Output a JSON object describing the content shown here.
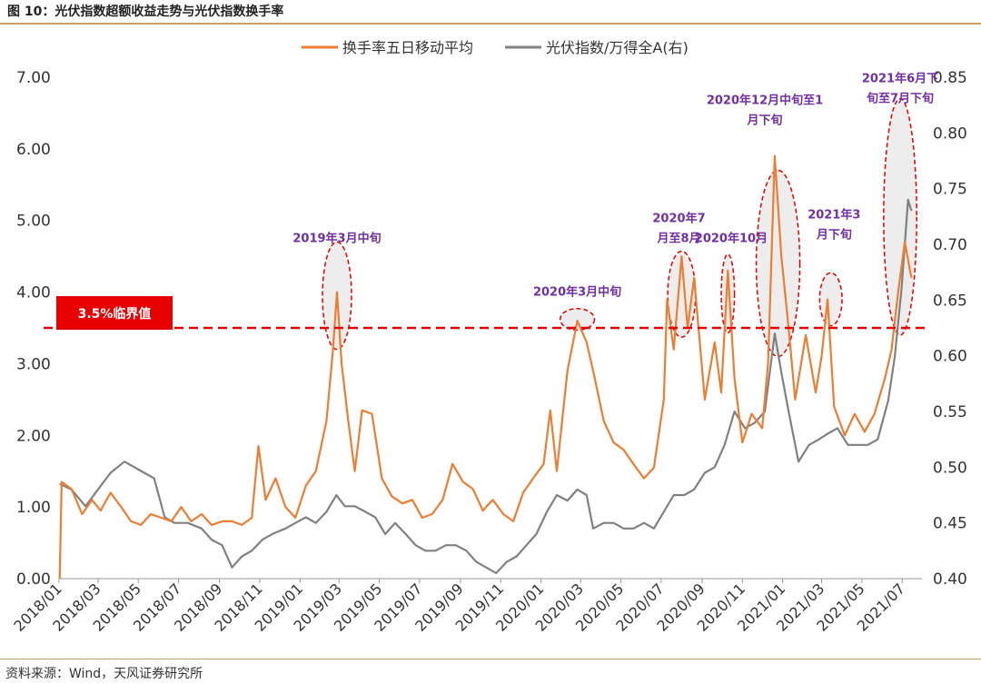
{
  "figure_title": "图 10：光伏指数超额收益走势与光伏指数换手率",
  "source_note": "资料来源：Wind，天风证券研究所",
  "colors": {
    "turnover": "#ED7D31",
    "index": "#808080",
    "threshold": "#E60000",
    "annotation_text": "#7030A0",
    "ellipse_stroke": "#E60000",
    "ellipse_fill": "#EDEDED",
    "rule": "#C8A46A"
  },
  "chart_data": {
    "type": "line",
    "legend_position": "top-center",
    "grid": false,
    "x_ticks": [
      "2018/01",
      "2018/03",
      "2018/05",
      "2018/07",
      "2018/09",
      "2018/11",
      "2019/01",
      "2019/03",
      "2019/05",
      "2019/07",
      "2019/09",
      "2019/11",
      "2020/01",
      "2020/03",
      "2020/05",
      "2020/07",
      "2020/09",
      "2020/11",
      "2021/01",
      "2021/03",
      "2021/05",
      "2021/07"
    ],
    "x_range": [
      "2018-01-01",
      "2021-07-31"
    ],
    "y_left": {
      "min": 0,
      "max": 7,
      "ticks": [
        "0.00",
        "1.00",
        "2.00",
        "3.00",
        "4.00",
        "5.00",
        "6.00",
        "7.00"
      ]
    },
    "y_right": {
      "min": 0.4,
      "max": 0.85,
      "ticks": [
        "0.40",
        "0.45",
        "0.50",
        "0.55",
        "0.60",
        "0.65",
        "0.70",
        "0.75",
        "0.80",
        "0.85"
      ]
    },
    "series": [
      {
        "name": "换手率五日移动平均",
        "axis": "left",
        "points": [
          [
            "2018-01-02",
            0.0
          ],
          [
            "2018-01-05",
            1.35
          ],
          [
            "2018-01-20",
            1.25
          ],
          [
            "2018-02-05",
            0.9
          ],
          [
            "2018-02-20",
            1.1
          ],
          [
            "2018-03-05",
            0.95
          ],
          [
            "2018-03-20",
            1.2
          ],
          [
            "2018-04-05",
            1.0
          ],
          [
            "2018-04-20",
            0.8
          ],
          [
            "2018-05-05",
            0.75
          ],
          [
            "2018-05-20",
            0.9
          ],
          [
            "2018-06-05",
            0.85
          ],
          [
            "2018-06-20",
            0.8
          ],
          [
            "2018-07-05",
            1.0
          ],
          [
            "2018-07-20",
            0.8
          ],
          [
            "2018-08-05",
            0.9
          ],
          [
            "2018-08-20",
            0.75
          ],
          [
            "2018-09-05",
            0.8
          ],
          [
            "2018-09-20",
            0.8
          ],
          [
            "2018-10-05",
            0.75
          ],
          [
            "2018-10-20",
            0.85
          ],
          [
            "2018-10-30",
            1.85
          ],
          [
            "2018-11-10",
            1.1
          ],
          [
            "2018-11-25",
            1.4
          ],
          [
            "2018-12-10",
            1.0
          ],
          [
            "2018-12-25",
            0.85
          ],
          [
            "2019-01-10",
            1.3
          ],
          [
            "2019-01-25",
            1.5
          ],
          [
            "2019-02-10",
            2.2
          ],
          [
            "2019-02-20",
            3.2
          ],
          [
            "2019-02-26",
            4.0
          ],
          [
            "2019-03-05",
            3.0
          ],
          [
            "2019-03-15",
            2.2
          ],
          [
            "2019-03-25",
            1.5
          ],
          [
            "2019-04-05",
            2.35
          ],
          [
            "2019-04-20",
            2.3
          ],
          [
            "2019-05-05",
            1.4
          ],
          [
            "2019-05-20",
            1.15
          ],
          [
            "2019-06-05",
            1.05
          ],
          [
            "2019-06-20",
            1.1
          ],
          [
            "2019-07-05",
            0.85
          ],
          [
            "2019-07-20",
            0.9
          ],
          [
            "2019-08-05",
            1.1
          ],
          [
            "2019-08-20",
            1.6
          ],
          [
            "2019-09-05",
            1.35
          ],
          [
            "2019-09-20",
            1.25
          ],
          [
            "2019-10-05",
            0.95
          ],
          [
            "2019-10-20",
            1.1
          ],
          [
            "2019-11-05",
            0.9
          ],
          [
            "2019-11-20",
            0.8
          ],
          [
            "2019-12-05",
            1.2
          ],
          [
            "2019-12-20",
            1.4
          ],
          [
            "2020-01-05",
            1.6
          ],
          [
            "2020-01-15",
            2.35
          ],
          [
            "2020-01-25",
            1.5
          ],
          [
            "2020-02-10",
            2.9
          ],
          [
            "2020-02-25",
            3.6
          ],
          [
            "2020-03-10",
            3.3
          ],
          [
            "2020-03-20",
            2.9
          ],
          [
            "2020-04-05",
            2.2
          ],
          [
            "2020-04-20",
            1.9
          ],
          [
            "2020-05-05",
            1.8
          ],
          [
            "2020-05-20",
            1.6
          ],
          [
            "2020-06-05",
            1.4
          ],
          [
            "2020-06-20",
            1.55
          ],
          [
            "2020-07-05",
            2.5
          ],
          [
            "2020-07-10",
            3.9
          ],
          [
            "2020-07-20",
            3.2
          ],
          [
            "2020-08-01",
            4.5
          ],
          [
            "2020-08-10",
            3.5
          ],
          [
            "2020-08-20",
            4.2
          ],
          [
            "2020-09-05",
            2.5
          ],
          [
            "2020-09-20",
            3.3
          ],
          [
            "2020-09-30",
            2.6
          ],
          [
            "2020-10-10",
            4.3
          ],
          [
            "2020-10-20",
            2.8
          ],
          [
            "2020-11-01",
            1.9
          ],
          [
            "2020-11-15",
            2.3
          ],
          [
            "2020-12-01",
            2.1
          ],
          [
            "2020-12-10",
            3.0
          ],
          [
            "2020-12-20",
            5.9
          ],
          [
            "2020-12-30",
            4.5
          ],
          [
            "2021-01-10",
            3.5
          ],
          [
            "2021-01-20",
            2.5
          ],
          [
            "2021-02-05",
            3.4
          ],
          [
            "2021-02-20",
            2.6
          ],
          [
            "2021-03-01",
            3.1
          ],
          [
            "2021-03-10",
            3.9
          ],
          [
            "2021-03-20",
            2.4
          ],
          [
            "2021-04-05",
            2.0
          ],
          [
            "2021-04-20",
            2.3
          ],
          [
            "2021-05-05",
            2.05
          ],
          [
            "2021-05-20",
            2.3
          ],
          [
            "2021-06-05",
            2.8
          ],
          [
            "2021-06-15",
            3.2
          ],
          [
            "2021-06-25",
            4.0
          ],
          [
            "2021-07-05",
            4.7
          ],
          [
            "2021-07-15",
            4.2
          ]
        ]
      },
      {
        "name": "光伏指数/万得全A(右)",
        "axis": "right",
        "points": [
          [
            "2018-01-02",
            0.485
          ],
          [
            "2018-01-20",
            0.48
          ],
          [
            "2018-02-10",
            0.465
          ],
          [
            "2018-03-01",
            0.48
          ],
          [
            "2018-03-20",
            0.495
          ],
          [
            "2018-04-10",
            0.505
          ],
          [
            "2018-04-25",
            0.5
          ],
          [
            "2018-05-10",
            0.495
          ],
          [
            "2018-05-25",
            0.49
          ],
          [
            "2018-06-10",
            0.455
          ],
          [
            "2018-06-25",
            0.45
          ],
          [
            "2018-07-15",
            0.45
          ],
          [
            "2018-08-05",
            0.445
          ],
          [
            "2018-08-20",
            0.435
          ],
          [
            "2018-09-05",
            0.43
          ],
          [
            "2018-09-20",
            0.41
          ],
          [
            "2018-10-05",
            0.42
          ],
          [
            "2018-10-20",
            0.425
          ],
          [
            "2018-11-05",
            0.435
          ],
          [
            "2018-11-20",
            0.44
          ],
          [
            "2018-12-10",
            0.445
          ],
          [
            "2018-12-25",
            0.45
          ],
          [
            "2019-01-10",
            0.455
          ],
          [
            "2019-01-25",
            0.45
          ],
          [
            "2019-02-10",
            0.46
          ],
          [
            "2019-02-25",
            0.475
          ],
          [
            "2019-03-10",
            0.465
          ],
          [
            "2019-03-25",
            0.465
          ],
          [
            "2019-04-10",
            0.46
          ],
          [
            "2019-04-25",
            0.455
          ],
          [
            "2019-05-10",
            0.44
          ],
          [
            "2019-05-25",
            0.45
          ],
          [
            "2019-06-10",
            0.44
          ],
          [
            "2019-06-25",
            0.43
          ],
          [
            "2019-07-10",
            0.425
          ],
          [
            "2019-07-25",
            0.425
          ],
          [
            "2019-08-10",
            0.43
          ],
          [
            "2019-08-25",
            0.43
          ],
          [
            "2019-09-10",
            0.425
          ],
          [
            "2019-09-25",
            0.415
          ],
          [
            "2019-10-10",
            0.41
          ],
          [
            "2019-10-25",
            0.405
          ],
          [
            "2019-11-10",
            0.415
          ],
          [
            "2019-11-25",
            0.42
          ],
          [
            "2019-12-10",
            0.43
          ],
          [
            "2019-12-25",
            0.44
          ],
          [
            "2020-01-10",
            0.46
          ],
          [
            "2020-01-25",
            0.475
          ],
          [
            "2020-02-10",
            0.47
          ],
          [
            "2020-02-25",
            0.48
          ],
          [
            "2020-03-10",
            0.475
          ],
          [
            "2020-03-20",
            0.445
          ],
          [
            "2020-04-05",
            0.45
          ],
          [
            "2020-04-20",
            0.45
          ],
          [
            "2020-05-05",
            0.445
          ],
          [
            "2020-05-20",
            0.445
          ],
          [
            "2020-06-05",
            0.45
          ],
          [
            "2020-06-20",
            0.445
          ],
          [
            "2020-07-05",
            0.46
          ],
          [
            "2020-07-20",
            0.475
          ],
          [
            "2020-08-05",
            0.475
          ],
          [
            "2020-08-20",
            0.48
          ],
          [
            "2020-09-05",
            0.495
          ],
          [
            "2020-09-20",
            0.5
          ],
          [
            "2020-10-05",
            0.52
          ],
          [
            "2020-10-20",
            0.55
          ],
          [
            "2020-11-05",
            0.535
          ],
          [
            "2020-11-20",
            0.54
          ],
          [
            "2020-12-05",
            0.55
          ],
          [
            "2020-12-20",
            0.62
          ],
          [
            "2020-12-30",
            0.585
          ],
          [
            "2021-01-10",
            0.55
          ],
          [
            "2021-01-25",
            0.505
          ],
          [
            "2021-02-10",
            0.52
          ],
          [
            "2021-02-25",
            0.525
          ],
          [
            "2021-03-10",
            0.53
          ],
          [
            "2021-03-25",
            0.535
          ],
          [
            "2021-04-10",
            0.52
          ],
          [
            "2021-04-25",
            0.52
          ],
          [
            "2021-05-10",
            0.52
          ],
          [
            "2021-05-25",
            0.525
          ],
          [
            "2021-06-10",
            0.56
          ],
          [
            "2021-06-20",
            0.6
          ],
          [
            "2021-06-30",
            0.66
          ],
          [
            "2021-07-10",
            0.74
          ],
          [
            "2021-07-15",
            0.73
          ]
        ]
      }
    ],
    "threshold": {
      "value": 3.5,
      "label": "3.5%临界值"
    },
    "annotations": [
      {
        "lines": [
          "2019年3月中旬"
        ],
        "center": [
          "2019-02-26",
          3.95
        ],
        "radii_days": 22,
        "radii_y": 0.75,
        "label_at": [
          "2019-02-26",
          4.7
        ]
      },
      {
        "lines": [
          "2020年3月中旬"
        ],
        "center": [
          "2020-02-25",
          3.62
        ],
        "radii_days": 26,
        "radii_y": 0.15,
        "label_at": [
          "2020-02-25",
          3.95
        ]
      },
      {
        "lines": [
          "2020年7",
          "月至8月"
        ],
        "center": [
          "2020-08-01",
          3.97
        ],
        "radii_days": 21,
        "radii_y": 0.6,
        "label_at": [
          "2020-07-28",
          4.7
        ]
      },
      {
        "lines": [
          "2020年10月"
        ],
        "center": [
          "2020-10-10",
          3.98
        ],
        "radii_days": 10,
        "radii_y": 0.55,
        "label_at": [
          "2020-10-15",
          4.7
        ]
      },
      {
        "lines": [
          "2020年12月中旬至1",
          "月下旬"
        ],
        "center": [
          "2020-12-25",
          4.4
        ],
        "radii_days": 33,
        "radii_y": 1.3,
        "label_at": [
          "2020-12-05",
          6.35
        ]
      },
      {
        "lines": [
          "2021年3",
          "月下旬"
        ],
        "center": [
          "2021-03-15",
          3.9
        ],
        "radii_days": 17,
        "radii_y": 0.37,
        "label_at": [
          "2021-03-20",
          4.75
        ]
      },
      {
        "lines": [
          "2021年6月下",
          "旬至7月下旬"
        ],
        "center": [
          "2021-06-28",
          5.05
        ],
        "radii_days": 25,
        "radii_y": 1.65,
        "label_at": [
          "2021-06-28",
          6.65
        ]
      }
    ]
  }
}
